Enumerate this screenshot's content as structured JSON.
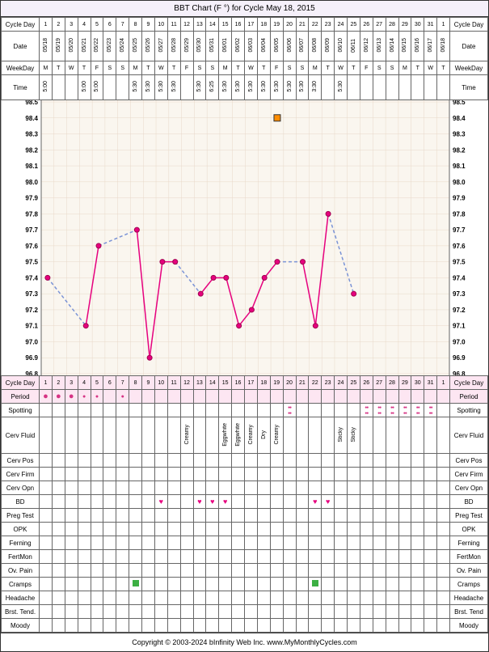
{
  "title": "BBT Chart (F °) for Cycle May 18, 2015",
  "numDays": 32,
  "labels": {
    "cycleDay": "Cycle Day",
    "date": "Date",
    "weekDay": "WeekDay",
    "time": "Time",
    "period": "Period",
    "spotting": "Spotting",
    "cervFluid": "Cerv Fluid",
    "cervPos": "Cerv Pos",
    "cervFirm": "Cerv Firm",
    "cervOpn": "Cerv Opn",
    "bd": "BD",
    "pregTest": "Preg Test",
    "opk": "OPK",
    "ferning": "Ferning",
    "fertMon": "FertMon",
    "ovPain": "Ov. Pain",
    "cramps": "Cramps",
    "headache": "Headache",
    "brstTend": "Brst. Tend.",
    "brstTendR": "Brst. Tend",
    "moody": "Moody"
  },
  "cycleDays": [
    1,
    2,
    3,
    4,
    5,
    6,
    7,
    8,
    9,
    10,
    11,
    12,
    13,
    14,
    15,
    16,
    17,
    18,
    19,
    20,
    21,
    22,
    23,
    24,
    25,
    26,
    27,
    28,
    29,
    30,
    31,
    1
  ],
  "dates": [
    "05/18",
    "05/19",
    "05/20",
    "05/21",
    "05/22",
    "05/23",
    "05/24",
    "05/25",
    "05/26",
    "05/27",
    "05/28",
    "05/29",
    "05/30",
    "05/31",
    "06/01",
    "06/02",
    "06/03",
    "06/04",
    "06/05",
    "06/06",
    "06/07",
    "06/08",
    "06/09",
    "06/10",
    "06/11",
    "06/12",
    "06/13",
    "06/14",
    "06/15",
    "06/16",
    "06/17",
    "06/18"
  ],
  "weekDays": [
    "M",
    "T",
    "W",
    "T",
    "F",
    "S",
    "S",
    "M",
    "T",
    "W",
    "T",
    "F",
    "S",
    "S",
    "M",
    "T",
    "W",
    "T",
    "F",
    "S",
    "S",
    "M",
    "T",
    "W",
    "T",
    "F",
    "S",
    "S",
    "M",
    "T",
    "W",
    "T"
  ],
  "times": [
    "5:00",
    "",
    "",
    "5:00",
    "5:00",
    "",
    "",
    "5:30",
    "5:30",
    "5:30",
    "5:30",
    "",
    "5:30",
    "6:25",
    "5:30",
    "5:30",
    "5:30",
    "5:30",
    "5:30",
    "5:30",
    "5:30",
    "3:30",
    "",
    "5:30",
    "",
    "",
    "",
    "",
    "",
    "",
    "",
    ""
  ],
  "yAxis": {
    "min": 96.8,
    "max": 98.5,
    "step": 0.1,
    "labels": [
      "98.5",
      "98.4",
      "98.3",
      "98.2",
      "98.1",
      "98.0",
      "97.9",
      "97.8",
      "97.7",
      "97.6",
      "97.5",
      "97.4",
      "97.3",
      "97.2",
      "97.1",
      "97.0",
      "96.9",
      "96.8"
    ]
  },
  "chart": {
    "line_color": "#e6007e",
    "dash_color": "#7a93d6",
    "point_color": "#e6007e",
    "point_stroke": "#a0004f",
    "grid_color": "#e8d8c8",
    "bg_color": "#faf6ef",
    "temps": [
      97.4,
      null,
      null,
      97.1,
      97.6,
      null,
      null,
      97.7,
      96.9,
      97.5,
      97.5,
      null,
      97.3,
      97.4,
      97.4,
      97.1,
      97.2,
      97.4,
      97.5,
      null,
      97.5,
      97.1,
      97.8,
      null,
      97.3,
      null,
      null,
      null,
      null,
      null,
      null,
      null
    ],
    "marker_day": 19,
    "marker_temp": 98.4
  },
  "period": {
    "1": "big",
    "2": "big",
    "3": "big",
    "4": "sm",
    "5": "sm",
    "7": "sm"
  },
  "spotting": {
    "20": true,
    "26": true,
    "27": true,
    "28": true,
    "29": true,
    "30": true,
    "31": true
  },
  "cervFluid": {
    "12": "Creamy",
    "15": "Eggwhite",
    "16": "Eggwhite",
    "17": "Creamy",
    "18": "Dry",
    "19": "Creamy",
    "24": "Sticky",
    "25": "Sticky"
  },
  "bd": {
    "10": true,
    "13": true,
    "14": true,
    "15": true,
    "22": true,
    "23": true
  },
  "cramps": {
    "8": true,
    "22": true
  },
  "footer": "Copyright © 2003-2024 bInfinity Web Inc.   www.MyMonthlyCycles.com"
}
